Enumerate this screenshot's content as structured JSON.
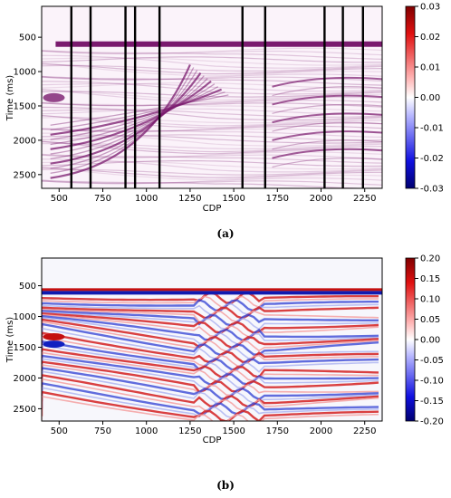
{
  "chart_data": [
    {
      "panel_label": "(a)",
      "type": "heatmap",
      "xlabel": "CDP",
      "ylabel": "Time (ms)",
      "xlim": [
        400,
        2350
      ],
      "ylim": [
        2700,
        50
      ],
      "xticks": [
        500,
        750,
        1000,
        1250,
        1500,
        1750,
        2000,
        2250
      ],
      "yticks": [
        500,
        1000,
        1500,
        2000,
        2500
      ],
      "colorbar": {
        "min": -0.03,
        "max": 0.03,
        "ticks": [
          "0.03",
          "0.02",
          "0.01",
          "0.00",
          "-0.01",
          "-0.02",
          "-0.03"
        ],
        "colormap": "seismic"
      },
      "vertical_lines_cdp": [
        570,
        680,
        880,
        935,
        1075,
        1550,
        1680,
        2020,
        2125,
        2240
      ],
      "horizontal_event_ms": 600,
      "dominant_color": "#7a1a6e"
    },
    {
      "panel_label": "(b)",
      "type": "heatmap",
      "xlabel": "CDP",
      "ylabel": "Time (ms)",
      "xlim": [
        400,
        2350
      ],
      "ylim": [
        2700,
        50
      ],
      "xticks": [
        500,
        750,
        1000,
        1250,
        1500,
        1750,
        2000,
        2250
      ],
      "yticks": [
        500,
        1000,
        1500,
        2000,
        2500
      ],
      "colorbar": {
        "min": -0.2,
        "max": 0.2,
        "ticks": [
          "0.20",
          "0.15",
          "0.10",
          "0.05",
          "0.00",
          "-0.05",
          "-0.10",
          "-0.15",
          "-0.20"
        ],
        "colormap": "seismic"
      },
      "horizontal_event_ms": 600
    }
  ]
}
